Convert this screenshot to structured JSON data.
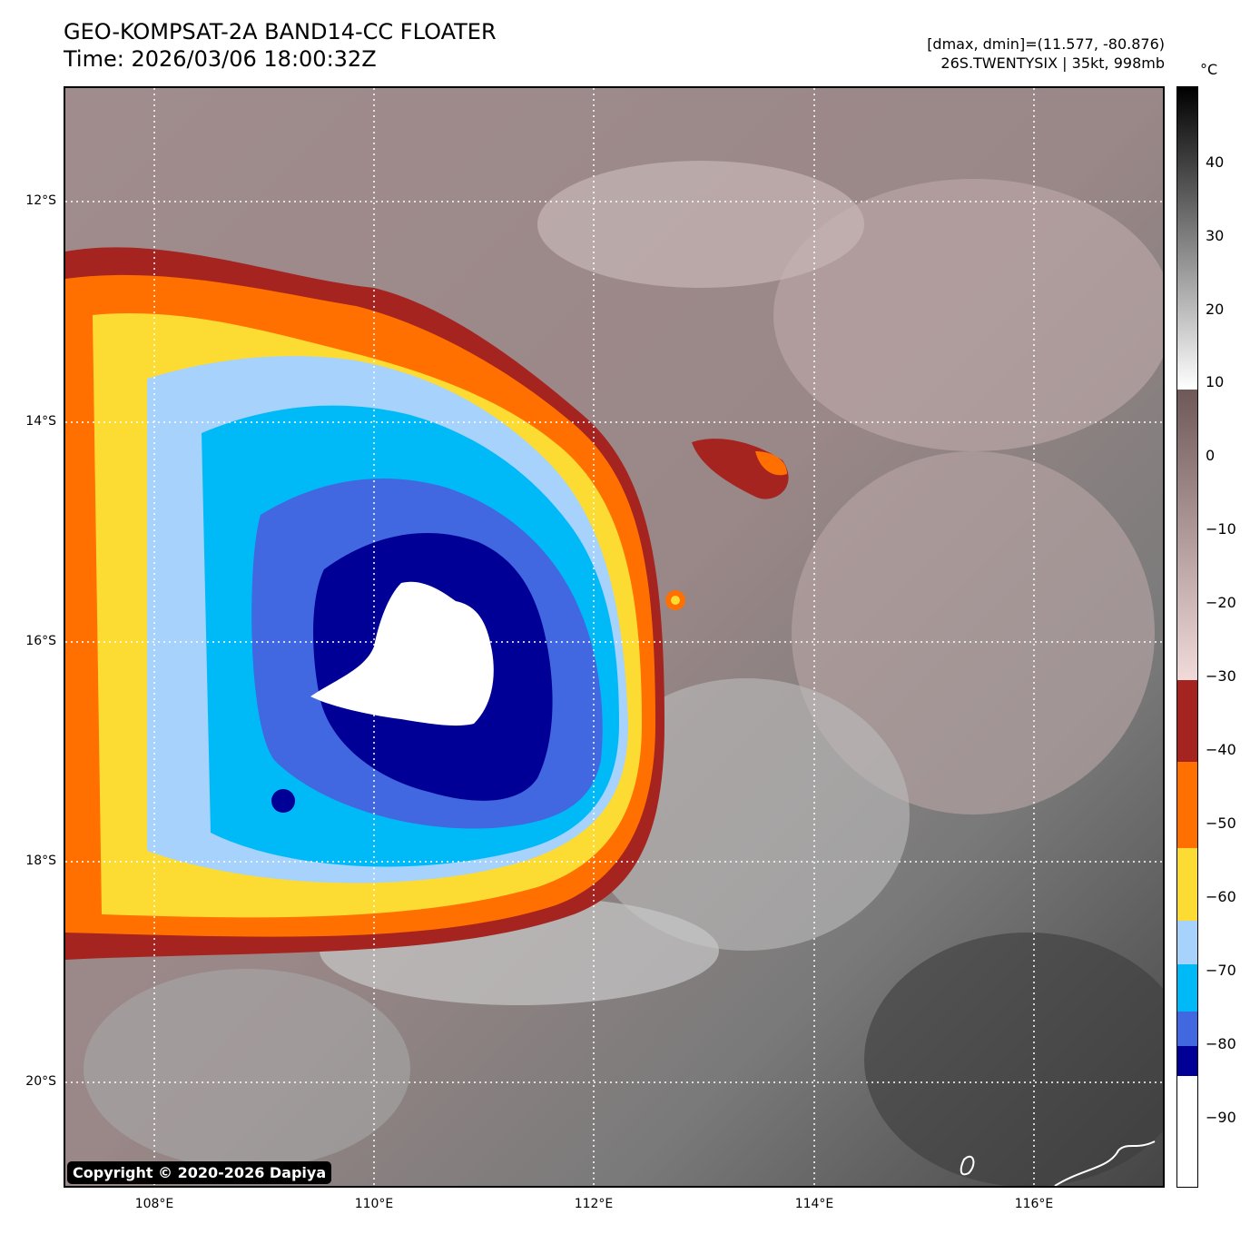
{
  "header": {
    "title_line1": "GEO-KOMPSAT-2A BAND14-CC FLOATER",
    "title_line2": "Time: 2026/03/06 18:00:32Z",
    "range_text": "[dmax, dmin]=(11.577, -80.876)",
    "storm_text": "26S.TWENTYSIX | 35kt, 998mb"
  },
  "map": {
    "lat_labels": [
      "12°S",
      "14°S",
      "16°S",
      "18°S",
      "20°S"
    ],
    "lon_labels": [
      "108°E",
      "110°E",
      "112°E",
      "114°E",
      "116°E"
    ],
    "copyright": "Copyright © 2020-2026 Dapiya"
  },
  "colorbar": {
    "unit": "°C",
    "ticks": [
      "40",
      "30",
      "20",
      "10",
      "0",
      "−10",
      "−20",
      "−30",
      "−40",
      "−50",
      "−60",
      "−70",
      "−80",
      "−90"
    ],
    "colors": {
      "warm_top": "#000000",
      "warm_bottom": "#ffffff",
      "brown_top": "#6e5858",
      "brown_bottom": "#f0dada",
      "dark_red": "#a52420",
      "orange": "#ff7000",
      "yellow": "#fcdc32",
      "light_blue": "#a6d2fc",
      "cyan": "#00baf8",
      "blue": "#4168e0",
      "navy": "#000096",
      "white": "#ffffff"
    }
  }
}
